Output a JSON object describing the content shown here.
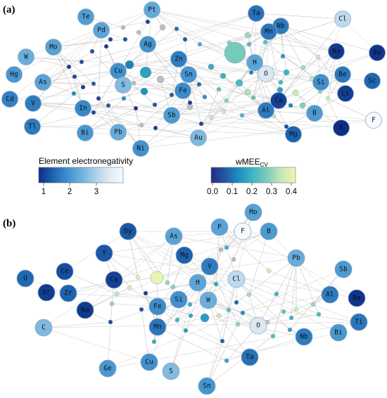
{
  "panels": [
    {
      "label": "(a)",
      "elements": [
        {
          "label": "Pt",
          "en": 2.28
        },
        {
          "label": "Te",
          "en": 2.1
        },
        {
          "label": "Pd",
          "en": 2.2
        },
        {
          "label": "Ta",
          "en": 1.5
        },
        {
          "label": "Nb",
          "en": 1.6
        },
        {
          "label": "Cl",
          "en": 3.16
        },
        {
          "label": "Mn",
          "en": 1.55
        },
        {
          "label": "Mo",
          "en": 2.16
        },
        {
          "label": "Ag",
          "en": 1.93
        },
        {
          "label": "W",
          "en": 2.36
        },
        {
          "label": "Hg",
          "en": 2.0
        },
        {
          "label": "Zn",
          "en": 1.65
        },
        {
          "label": "Na",
          "en": 0.93
        },
        {
          "label": "Ba",
          "en": 0.89
        },
        {
          "label": "As",
          "en": 2.18
        },
        {
          "label": "Cu",
          "en": 1.9
        },
        {
          "label": "Sn",
          "en": 1.96
        },
        {
          "label": "H",
          "en": 2.2
        },
        {
          "label": "O",
          "en": 3.44
        },
        {
          "label": "Be",
          "en": 1.57
        },
        {
          "label": "Sc",
          "en": 1.36
        },
        {
          "label": "Cd",
          "en": 1.69
        },
        {
          "label": "S",
          "en": 2.58
        },
        {
          "label": "Si",
          "en": 1.9
        },
        {
          "label": "V",
          "en": 1.63
        },
        {
          "label": "Fe",
          "en": 1.83
        },
        {
          "label": "Li",
          "en": 0.98
        },
        {
          "label": "In",
          "en": 1.78
        },
        {
          "label": "Ca",
          "en": 1.0
        },
        {
          "label": "Al",
          "en": 1.61
        },
        {
          "label": "Tl",
          "en": 1.62
        },
        {
          "label": "Sb",
          "en": 2.05
        },
        {
          "label": "B",
          "en": 2.04
        },
        {
          "label": "F",
          "en": 3.98
        },
        {
          "label": "Bi",
          "en": 2.02
        },
        {
          "label": "Pb",
          "en": 2.33
        },
        {
          "label": "Mg",
          "en": 1.31
        },
        {
          "label": "K",
          "en": 0.82
        },
        {
          "label": "Au",
          "en": 2.54
        },
        {
          "label": "Ni",
          "en": 1.91
        }
      ]
    },
    {
      "label": "(b)",
      "elements": [
        {
          "label": "Mo",
          "en": 2.16
        },
        {
          "label": "P",
          "en": 2.19
        },
        {
          "label": "F",
          "en": 3.98
        },
        {
          "label": "B",
          "en": 2.04
        },
        {
          "label": "Dy",
          "en": 1.22
        },
        {
          "label": "As",
          "en": 2.18
        },
        {
          "label": "Mg",
          "en": 1.31
        },
        {
          "label": "Y",
          "en": 1.22
        },
        {
          "label": "Pb",
          "en": 2.33
        },
        {
          "label": "V",
          "en": 1.63
        },
        {
          "label": "Ce",
          "en": 1.12
        },
        {
          "label": "Ca",
          "en": 1.0
        },
        {
          "label": "Cl",
          "en": 3.16
        },
        {
          "label": "Sb",
          "en": 2.05
        },
        {
          "label": "U",
          "en": 1.38
        },
        {
          "label": "H",
          "en": 2.2
        },
        {
          "label": "Sr",
          "en": 0.95
        },
        {
          "label": "Zr",
          "en": 1.33
        },
        {
          "label": "Si",
          "en": 1.9
        },
        {
          "label": "W",
          "en": 2.36
        },
        {
          "label": "Al",
          "en": 1.61
        },
        {
          "label": "Ba",
          "en": 0.89
        },
        {
          "label": "Na",
          "en": 0.93
        },
        {
          "label": "Fe",
          "en": 1.83
        },
        {
          "label": "Ti",
          "en": 1.54
        },
        {
          "label": "C",
          "en": 2.55
        },
        {
          "label": "Mn",
          "en": 1.55
        },
        {
          "label": "O",
          "en": 3.44
        },
        {
          "label": "Nb",
          "en": 1.6
        },
        {
          "label": "Bi",
          "en": 2.02
        },
        {
          "label": "Ge",
          "en": 2.01
        },
        {
          "label": "Cu",
          "en": 1.9
        },
        {
          "label": "Ta",
          "en": 1.5
        },
        {
          "label": "S",
          "en": 2.58
        },
        {
          "label": "Sn",
          "en": 1.96
        }
      ]
    }
  ],
  "legend_en": {
    "title": "Element electronegativity",
    "ticks": [
      "1",
      "2",
      "3"
    ],
    "colors": [
      "#0c2c84",
      "#1d64b0",
      "#3d8fcb",
      "#6eb0dc",
      "#a9cfea",
      "#dde9f5",
      "#f7fbff"
    ]
  },
  "legend_wmee": {
    "title": "wMEE",
    "title_sub": "CV",
    "ticks": [
      "0.0",
      "0.1",
      "0.2",
      "0.3",
      "0.4"
    ],
    "colors": [
      "#1f2d8a",
      "#2457a5",
      "#1d91c0",
      "#41b6c4",
      "#7fcdbb",
      "#c7e9b4",
      "#edf8b1"
    ]
  },
  "colors": {
    "edge": "#c8c8c8",
    "node_stroke": "#8fa9c7",
    "grey_node": "#bdbdbd"
  }
}
